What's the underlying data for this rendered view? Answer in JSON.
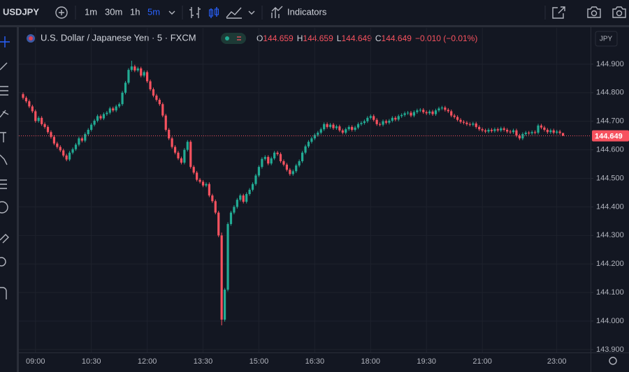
{
  "toolbar": {
    "symbol": "USDJPY",
    "intervals": [
      "1m",
      "30m",
      "1h",
      "5m"
    ],
    "indicators": "Indicators",
    "currency": "JPY"
  },
  "chart_data": {
    "type": "candlestick",
    "legend": {
      "title": "U.S. Dollar / Japanese Yen · 5 · FXCM",
      "labels": [
        "O",
        "H",
        "L",
        "C"
      ],
      "change": "−0.010 (−0.01%)"
    },
    "up_color": "#22ab94",
    "down_color": "#f7525f",
    "x": [
      "08:40",
      "08:45",
      "08:50",
      "08:55",
      "09:00",
      "09:05",
      "09:10",
      "09:15",
      "09:20",
      "09:25",
      "09:30",
      "09:35",
      "09:40",
      "09:45",
      "09:50",
      "09:55",
      "10:00",
      "10:05",
      "10:10",
      "10:15",
      "10:20",
      "10:25",
      "10:30",
      "10:35",
      "10:40",
      "10:45",
      "10:50",
      "10:55",
      "11:00",
      "11:05",
      "11:10",
      "11:15",
      "11:20",
      "11:25",
      "11:30",
      "11:35",
      "11:40",
      "11:45",
      "11:50",
      "11:55",
      "12:00",
      "12:05",
      "12:10",
      "12:15",
      "12:20",
      "12:25",
      "12:30",
      "12:35",
      "12:40",
      "12:45",
      "12:50",
      "12:55",
      "13:00",
      "13:05",
      "13:10",
      "13:15",
      "13:20",
      "13:25",
      "13:30",
      "13:35",
      "13:40",
      "13:45",
      "13:50",
      "13:55",
      "14:00",
      "14:05",
      "14:10",
      "14:15",
      "14:20",
      "14:25",
      "14:30",
      "14:35",
      "14:40",
      "14:45",
      "14:50",
      "14:55",
      "15:00",
      "15:05",
      "15:10",
      "15:15",
      "15:20",
      "15:25",
      "15:30",
      "15:35",
      "15:40",
      "15:45",
      "15:50",
      "15:55",
      "16:00",
      "16:05",
      "16:10",
      "16:15",
      "16:20",
      "16:25",
      "16:30",
      "16:35",
      "16:40",
      "16:45",
      "16:50",
      "16:55",
      "17:00",
      "17:05",
      "17:10",
      "17:15",
      "17:20",
      "17:25",
      "17:30",
      "17:35",
      "17:40",
      "17:45",
      "17:50",
      "17:55",
      "18:00",
      "18:05",
      "18:10",
      "18:15",
      "18:20",
      "18:25",
      "18:30",
      "18:35",
      "18:40",
      "18:45",
      "18:50",
      "18:55",
      "19:00",
      "19:05",
      "19:10",
      "19:15",
      "19:20",
      "19:25",
      "19:30",
      "19:35",
      "19:40",
      "19:45",
      "19:50",
      "19:55",
      "20:00",
      "20:05",
      "20:10",
      "20:15",
      "20:20",
      "20:25",
      "20:30",
      "20:35",
      "20:40",
      "20:45",
      "20:50",
      "20:55",
      "21:00",
      "21:05",
      "21:10",
      "21:15",
      "21:20",
      "21:25",
      "21:30",
      "21:35",
      "21:40",
      "21:45",
      "21:50",
      "21:55",
      "22:00",
      "22:05",
      "22:10",
      "22:15",
      "22:20",
      "22:25",
      "22:30",
      "22:35",
      "22:40",
      "22:45",
      "22:50",
      "22:55",
      "23:00",
      "23:05",
      "23:10"
    ],
    "open": [
      144.795,
      144.782,
      144.77,
      144.752,
      144.735,
      144.701,
      144.712,
      144.69,
      144.68,
      144.662,
      144.645,
      144.622,
      144.61,
      144.598,
      144.58,
      144.566,
      144.59,
      144.602,
      144.618,
      144.64,
      144.632,
      144.655,
      144.67,
      144.688,
      144.702,
      144.718,
      144.71,
      144.725,
      144.73,
      144.745,
      144.738,
      144.752,
      144.76,
      144.8,
      144.835,
      144.88,
      144.892,
      144.878,
      144.885,
      144.86,
      144.872,
      144.84,
      144.812,
      144.79,
      144.775,
      144.76,
      144.72,
      144.67,
      144.64,
      144.61,
      144.59,
      144.57,
      144.555,
      144.6,
      144.628,
      144.54,
      144.52,
      144.495,
      144.488,
      144.475,
      144.48,
      144.44,
      144.42,
      144.38,
      144.3,
      144.005,
      144.11,
      144.34,
      144.38,
      144.4,
      144.425,
      144.44,
      144.418,
      144.445,
      144.46,
      144.48,
      144.51,
      144.54,
      144.568,
      144.575,
      144.552,
      144.57,
      144.59,
      144.585,
      144.56,
      144.548,
      144.53,
      144.515,
      144.525,
      144.545,
      144.56,
      144.59,
      144.612,
      144.628,
      144.64,
      144.652,
      144.66,
      144.672,
      144.69,
      144.68,
      144.688,
      144.676,
      144.682,
      144.668,
      144.66,
      144.672,
      144.68,
      144.67,
      144.678,
      144.69,
      144.694,
      144.7,
      144.712,
      144.718,
      144.705,
      144.69,
      144.688,
      144.7,
      144.695,
      144.702,
      144.712,
      144.706,
      144.718,
      144.722,
      144.728,
      144.73,
      144.72,
      144.732,
      144.738,
      144.74,
      144.732,
      144.728,
      144.734,
      144.725,
      144.738,
      144.745,
      144.748,
      144.74,
      144.735,
      144.72,
      144.715,
      144.705,
      144.698,
      144.695,
      144.69,
      144.688,
      144.692,
      144.68,
      144.672,
      144.668,
      144.664,
      144.67,
      144.666,
      144.672,
      144.668,
      144.675,
      144.67,
      144.664,
      144.662,
      144.668,
      144.65,
      144.64,
      144.655,
      144.66,
      144.658,
      144.662,
      144.66,
      144.685,
      144.678,
      144.67,
      144.662,
      144.668,
      144.66,
      144.664,
      144.659
    ],
    "high": [
      144.801,
      144.788,
      144.776,
      144.758,
      144.741,
      144.718,
      144.718,
      144.696,
      144.686,
      144.668,
      144.651,
      144.628,
      144.616,
      144.604,
      144.586,
      144.596,
      144.608,
      144.624,
      144.646,
      144.646,
      144.661,
      144.676,
      144.694,
      144.708,
      144.724,
      144.724,
      144.731,
      144.736,
      144.751,
      144.751,
      144.758,
      144.766,
      144.806,
      144.841,
      144.886,
      144.912,
      144.898,
      144.891,
      144.891,
      144.878,
      144.878,
      144.846,
      144.818,
      144.796,
      144.781,
      144.766,
      144.726,
      144.676,
      144.646,
      144.616,
      144.596,
      144.576,
      144.606,
      144.634,
      144.634,
      144.546,
      144.526,
      144.501,
      144.494,
      144.486,
      144.486,
      144.446,
      144.426,
      144.386,
      144.31,
      144.116,
      144.346,
      144.386,
      144.406,
      144.431,
      144.446,
      144.446,
      144.451,
      144.466,
      144.486,
      144.516,
      144.546,
      144.574,
      144.581,
      144.581,
      144.576,
      144.596,
      144.596,
      144.591,
      144.566,
      144.554,
      144.536,
      144.531,
      144.551,
      144.566,
      144.596,
      144.618,
      144.634,
      144.646,
      144.658,
      144.666,
      144.678,
      144.696,
      144.696,
      144.694,
      144.694,
      144.688,
      144.688,
      144.674,
      144.678,
      144.686,
      144.686,
      144.684,
      144.696,
      144.7,
      144.706,
      144.718,
      144.724,
      144.724,
      144.711,
      144.696,
      144.706,
      144.706,
      144.708,
      144.718,
      144.718,
      144.724,
      144.728,
      144.734,
      144.736,
      144.736,
      144.738,
      144.744,
      144.746,
      144.746,
      144.738,
      144.74,
      144.74,
      144.744,
      144.751,
      144.754,
      144.754,
      144.746,
      144.741,
      144.726,
      144.721,
      144.711,
      144.704,
      144.701,
      144.696,
      144.698,
      144.698,
      144.686,
      144.678,
      144.674,
      144.676,
      144.676,
      144.678,
      144.678,
      144.681,
      144.681,
      144.676,
      144.67,
      144.674,
      144.674,
      144.656,
      144.661,
      144.666,
      144.666,
      144.668,
      144.668,
      144.691,
      144.691,
      144.684,
      144.676,
      144.674,
      144.674,
      144.67,
      144.67,
      144.659
    ],
    "low": [
      144.776,
      144.764,
      144.746,
      144.729,
      144.695,
      144.695,
      144.684,
      144.674,
      144.656,
      144.639,
      144.616,
      144.604,
      144.592,
      144.574,
      144.56,
      144.56,
      144.584,
      144.596,
      144.612,
      144.626,
      144.626,
      144.649,
      144.664,
      144.682,
      144.696,
      144.704,
      144.704,
      144.719,
      144.724,
      144.732,
      144.732,
      144.746,
      144.754,
      144.794,
      144.829,
      144.874,
      144.872,
      144.872,
      144.854,
      144.854,
      144.834,
      144.806,
      144.784,
      144.769,
      144.754,
      144.714,
      144.664,
      144.634,
      144.604,
      144.584,
      144.564,
      144.549,
      144.549,
      144.594,
      144.534,
      144.514,
      144.489,
      144.482,
      144.469,
      144.469,
      144.434,
      144.414,
      144.374,
      144.294,
      143.985,
      143.998,
      144.104,
      144.334,
      144.374,
      144.394,
      144.419,
      144.412,
      144.412,
      144.439,
      144.454,
      144.474,
      144.504,
      144.534,
      144.562,
      144.546,
      144.546,
      144.564,
      144.579,
      144.554,
      144.542,
      144.524,
      144.509,
      144.509,
      144.519,
      144.539,
      144.554,
      144.584,
      144.606,
      144.622,
      144.634,
      144.646,
      144.654,
      144.666,
      144.674,
      144.674,
      144.67,
      144.67,
      144.662,
      144.654,
      144.654,
      144.666,
      144.664,
      144.664,
      144.672,
      144.684,
      144.688,
      144.694,
      144.706,
      144.699,
      144.684,
      144.682,
      144.682,
      144.689,
      144.689,
      144.696,
      144.7,
      144.7,
      144.712,
      144.716,
      144.722,
      144.714,
      144.714,
      144.726,
      144.732,
      144.726,
      144.722,
      144.722,
      144.719,
      144.719,
      144.732,
      144.739,
      144.734,
      144.729,
      144.714,
      144.709,
      144.699,
      144.692,
      144.689,
      144.684,
      144.682,
      144.682,
      144.674,
      144.666,
      144.662,
      144.658,
      144.658,
      144.66,
      144.66,
      144.662,
      144.662,
      144.664,
      144.658,
      144.656,
      144.656,
      144.644,
      144.634,
      144.634,
      144.649,
      144.652,
      144.652,
      144.654,
      144.654,
      144.672,
      144.664,
      144.656,
      144.656,
      144.654,
      144.654,
      144.653,
      144.649
    ],
    "close": [
      144.782,
      144.77,
      144.752,
      144.735,
      144.701,
      144.712,
      144.69,
      144.68,
      144.662,
      144.645,
      144.622,
      144.61,
      144.598,
      144.58,
      144.566,
      144.59,
      144.602,
      144.618,
      144.64,
      144.632,
      144.655,
      144.67,
      144.688,
      144.702,
      144.718,
      144.71,
      144.725,
      144.73,
      144.745,
      144.738,
      144.752,
      144.76,
      144.8,
      144.835,
      144.88,
      144.892,
      144.878,
      144.885,
      144.86,
      144.872,
      144.84,
      144.812,
      144.79,
      144.775,
      144.76,
      144.72,
      144.67,
      144.64,
      144.61,
      144.59,
      144.57,
      144.555,
      144.6,
      144.628,
      144.54,
      144.52,
      144.495,
      144.488,
      144.475,
      144.48,
      144.44,
      144.42,
      144.38,
      144.3,
      144.005,
      144.11,
      144.34,
      144.38,
      144.4,
      144.425,
      144.44,
      144.418,
      144.445,
      144.46,
      144.48,
      144.51,
      144.54,
      144.568,
      144.575,
      144.552,
      144.57,
      144.59,
      144.585,
      144.56,
      144.548,
      144.53,
      144.515,
      144.525,
      144.545,
      144.56,
      144.59,
      144.612,
      144.628,
      144.64,
      144.652,
      144.66,
      144.672,
      144.69,
      144.68,
      144.688,
      144.676,
      144.682,
      144.668,
      144.66,
      144.672,
      144.68,
      144.67,
      144.678,
      144.69,
      144.694,
      144.7,
      144.712,
      144.718,
      144.705,
      144.69,
      144.688,
      144.7,
      144.695,
      144.702,
      144.712,
      144.706,
      144.718,
      144.722,
      144.728,
      144.73,
      144.72,
      144.732,
      144.738,
      144.74,
      144.732,
      144.728,
      144.734,
      144.725,
      144.738,
      144.745,
      144.748,
      144.74,
      144.735,
      144.72,
      144.715,
      144.705,
      144.698,
      144.695,
      144.69,
      144.688,
      144.692,
      144.68,
      144.672,
      144.668,
      144.664,
      144.67,
      144.666,
      144.672,
      144.668,
      144.675,
      144.67,
      144.664,
      144.662,
      144.668,
      144.65,
      144.64,
      144.655,
      144.66,
      144.658,
      144.662,
      144.66,
      144.685,
      144.678,
      144.67,
      144.662,
      144.668,
      144.66,
      144.664,
      144.659,
      144.649
    ],
    "xticks": [
      "09:00",
      "10:30",
      "12:00",
      "13:30",
      "15:00",
      "16:30",
      "18:00",
      "19:30",
      "21:00",
      "23:00"
    ],
    "ylim": [
      143.89,
      145.027
    ],
    "yticks": [
      {
        "value": 143.9,
        "label": "143.900"
      },
      {
        "value": 144.0,
        "label": "144.000"
      },
      {
        "value": 144.1,
        "label": "144.100"
      },
      {
        "value": 144.2,
        "label": "144.200"
      },
      {
        "value": 144.3,
        "label": "144.300"
      },
      {
        "value": 144.4,
        "label": "144.400"
      },
      {
        "value": 144.5,
        "label": "144.500"
      },
      {
        "value": 144.6,
        "label": "144.600"
      },
      {
        "value": 144.7,
        "label": "144.700"
      },
      {
        "value": 144.8,
        "label": "144.800"
      },
      {
        "value": 144.9,
        "label": "144.900"
      }
    ],
    "grid": true
  }
}
